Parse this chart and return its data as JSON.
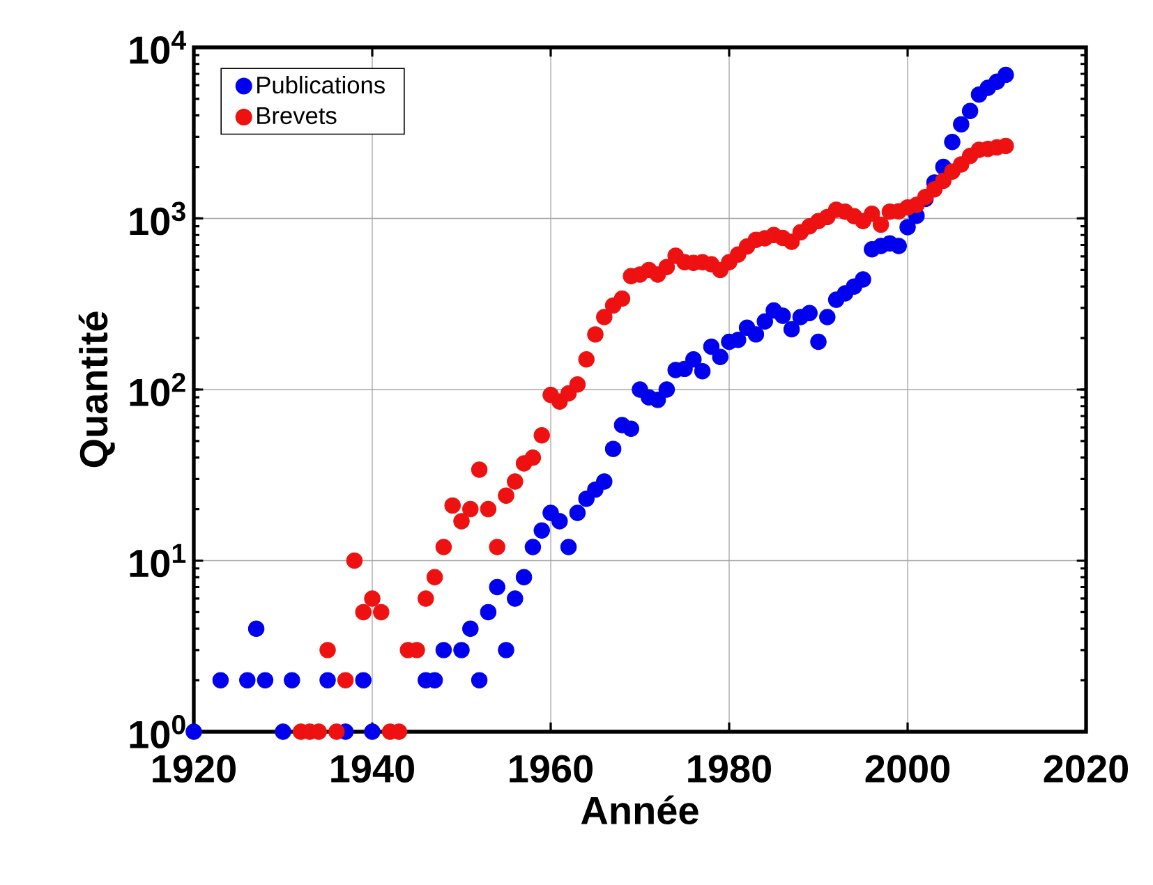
{
  "chart_data": {
    "type": "scatter",
    "xlabel": "Année",
    "ylabel": "Quantité",
    "log": "y",
    "grid": true,
    "legend": "top left",
    "marker": "circle",
    "xlim": [
      1920,
      2020
    ],
    "xticks": [
      1920,
      1940,
      1960,
      1980,
      2000,
      2020
    ],
    "ylim": [
      1,
      10000
    ],
    "yticks": [
      {
        "value": 1,
        "label": "10$^{0}$"
      },
      {
        "value": 10,
        "label": "10$^{1}$"
      },
      {
        "value": 100,
        "label": "10$^{2}$"
      },
      {
        "value": 1000,
        "label": "10$^{3}$"
      },
      {
        "value": 10000,
        "label": "10$^{4}$"
      }
    ],
    "series": [
      {
        "name": "Publications",
        "color": "#0000ee",
        "x": [
          1920,
          1923,
          1926,
          1927,
          1928,
          1930,
          1931,
          1935,
          1936,
          1937,
          1939,
          1940,
          1946,
          1947,
          1948,
          1950,
          1951,
          1952,
          1953,
          1954,
          1955,
          1956,
          1957,
          1958,
          1959,
          1960,
          1961,
          1962,
          1963,
          1964,
          1965,
          1966,
          1967,
          1968,
          1969,
          1970,
          1971,
          1972,
          1973,
          1974,
          1975,
          1976,
          1977,
          1978,
          1979,
          1980,
          1981,
          1982,
          1983,
          1984,
          1985,
          1986,
          1987,
          1988,
          1989,
          1990,
          1991,
          1992,
          1993,
          1994,
          1995,
          1996,
          1997,
          1998,
          1999,
          2000,
          2001,
          2002,
          2003,
          2004,
          2005,
          2006,
          2007,
          2008,
          2009,
          2010,
          2011
        ],
        "values": [
          1,
          2,
          2,
          4,
          2,
          1,
          2,
          2,
          null,
          1,
          2,
          1,
          2,
          2,
          3,
          3,
          4,
          2,
          5,
          7,
          3,
          6,
          8,
          12,
          15,
          19,
          17,
          12,
          19,
          23,
          26,
          29,
          45,
          62,
          59,
          100,
          90,
          87,
          100,
          130,
          132,
          150,
          128,
          178,
          155,
          190,
          195,
          230,
          210,
          250,
          290,
          270,
          225,
          265,
          280,
          190,
          265,
          335,
          365,
          400,
          440,
          660,
          690,
          715,
          690,
          890,
          1035,
          1300,
          1620,
          2000,
          2800,
          3550,
          4250,
          5300,
          5800,
          6300,
          6900
        ]
      },
      {
        "name": "Brevets",
        "color": "#ee1111",
        "x": [
          1932,
          1933,
          1934,
          1935,
          1936,
          1937,
          1938,
          1939,
          1940,
          1941,
          1942,
          1943,
          1944,
          1945,
          1946,
          1947,
          1948,
          1949,
          1950,
          1951,
          1952,
          1953,
          1954,
          1955,
          1956,
          1957,
          1958,
          1959,
          1960,
          1961,
          1962,
          1963,
          1964,
          1965,
          1966,
          1967,
          1968,
          1969,
          1970,
          1971,
          1972,
          1973,
          1974,
          1975,
          1976,
          1977,
          1978,
          1979,
          1980,
          1981,
          1982,
          1983,
          1984,
          1985,
          1986,
          1987,
          1988,
          1989,
          1990,
          1991,
          1992,
          1993,
          1994,
          1995,
          1996,
          1997,
          1998,
          1999,
          2000,
          2001,
          2002,
          2003,
          2004,
          2005,
          2006,
          2007,
          2008,
          2009,
          2010,
          2011
        ],
        "values": [
          1,
          1,
          1,
          3,
          1,
          2,
          10,
          5,
          6,
          5,
          1,
          1,
          3,
          3,
          6,
          8,
          12,
          21,
          17,
          20,
          34,
          20,
          12,
          24,
          29,
          37,
          40,
          54,
          93,
          85,
          95,
          107,
          150,
          210,
          265,
          310,
          340,
          460,
          470,
          500,
          470,
          520,
          605,
          555,
          550,
          555,
          540,
          500,
          555,
          615,
          685,
          750,
          765,
          800,
          770,
          730,
          830,
          900,
          965,
          1020,
          1125,
          1095,
          1030,
          965,
          1065,
          920,
          1095,
          1100,
          1160,
          1200,
          1335,
          1480,
          1660,
          1880,
          2070,
          2320,
          2520,
          2550,
          2600,
          2650
        ]
      }
    ]
  }
}
